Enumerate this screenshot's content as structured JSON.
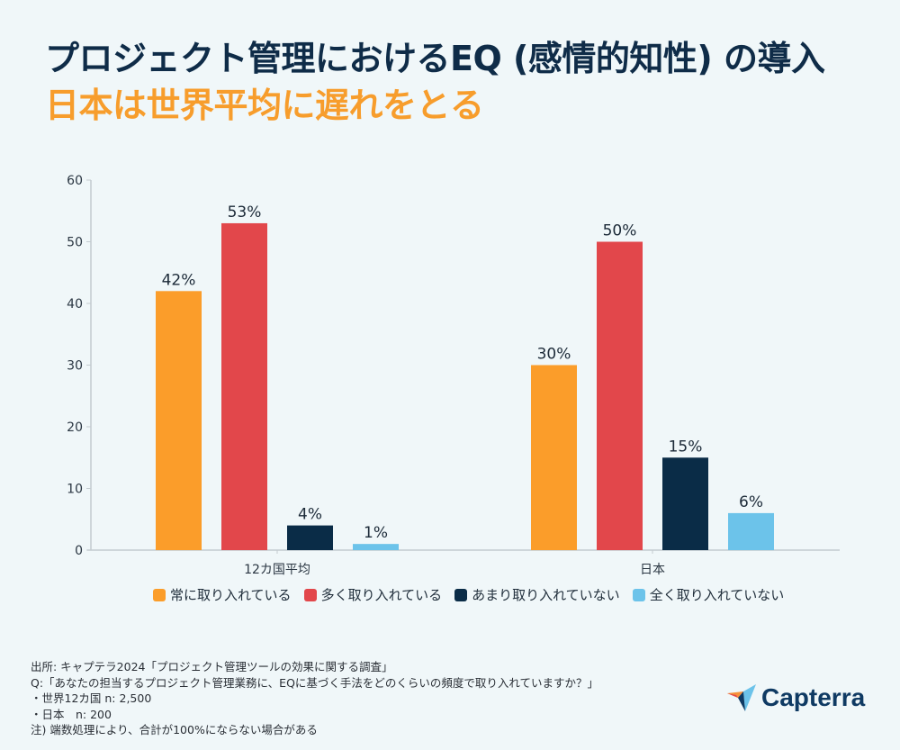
{
  "header": {
    "title": "プロジェクト管理におけるEQ (感情的知性) の導入",
    "subtitle": "日本は世界平均に遅れをとる"
  },
  "colors": {
    "background": "#f0f7f9",
    "title": "#0f2c48",
    "subtitle": "#f79d2c",
    "axis": "#c3cbd0"
  },
  "chart_data": {
    "type": "bar",
    "title": "プロジェクト管理におけるEQ (感情的知性) の導入",
    "subtitle": "日本は世界平均に遅れをとる",
    "xlabel": "",
    "ylabel": "",
    "ylim": [
      0,
      60
    ],
    "yticks": [
      0,
      10,
      20,
      30,
      40,
      50,
      60
    ],
    "grid": false,
    "legend_position": "bottom",
    "categories": [
      "12カ国平均",
      "日本"
    ],
    "series": [
      {
        "name": "常に取り入れている",
        "color": "#fb9d2a",
        "values": [
          42,
          30
        ],
        "labels": [
          "42%",
          "30%"
        ]
      },
      {
        "name": "多く取り入れている",
        "color": "#e2474b",
        "values": [
          53,
          50
        ],
        "labels": [
          "53%",
          "50%"
        ]
      },
      {
        "name": "あまり取り入れていない",
        "color": "#0a2c47",
        "values": [
          4,
          15
        ],
        "labels": [
          "4%",
          "15%"
        ]
      },
      {
        "name": "全く取り入れていない",
        "color": "#6cc3ea",
        "values": [
          1,
          6
        ],
        "labels": [
          "1%",
          "6%"
        ]
      }
    ]
  },
  "footnote": {
    "lines": [
      "出所: キャプテラ2024「プロジェクト管理ツールの効果に関する調査」",
      "Q:「あなたの担当するプロジェクト管理業務に、EQに基づく手法をどのくらいの頻度で取り入れていますか？」",
      "・世界12カ国 n: 2,500",
      "・日本　n: 200",
      "注)  端数処理により、合計が100%にならない場合がある"
    ]
  },
  "brand": {
    "name": "Capterra"
  }
}
